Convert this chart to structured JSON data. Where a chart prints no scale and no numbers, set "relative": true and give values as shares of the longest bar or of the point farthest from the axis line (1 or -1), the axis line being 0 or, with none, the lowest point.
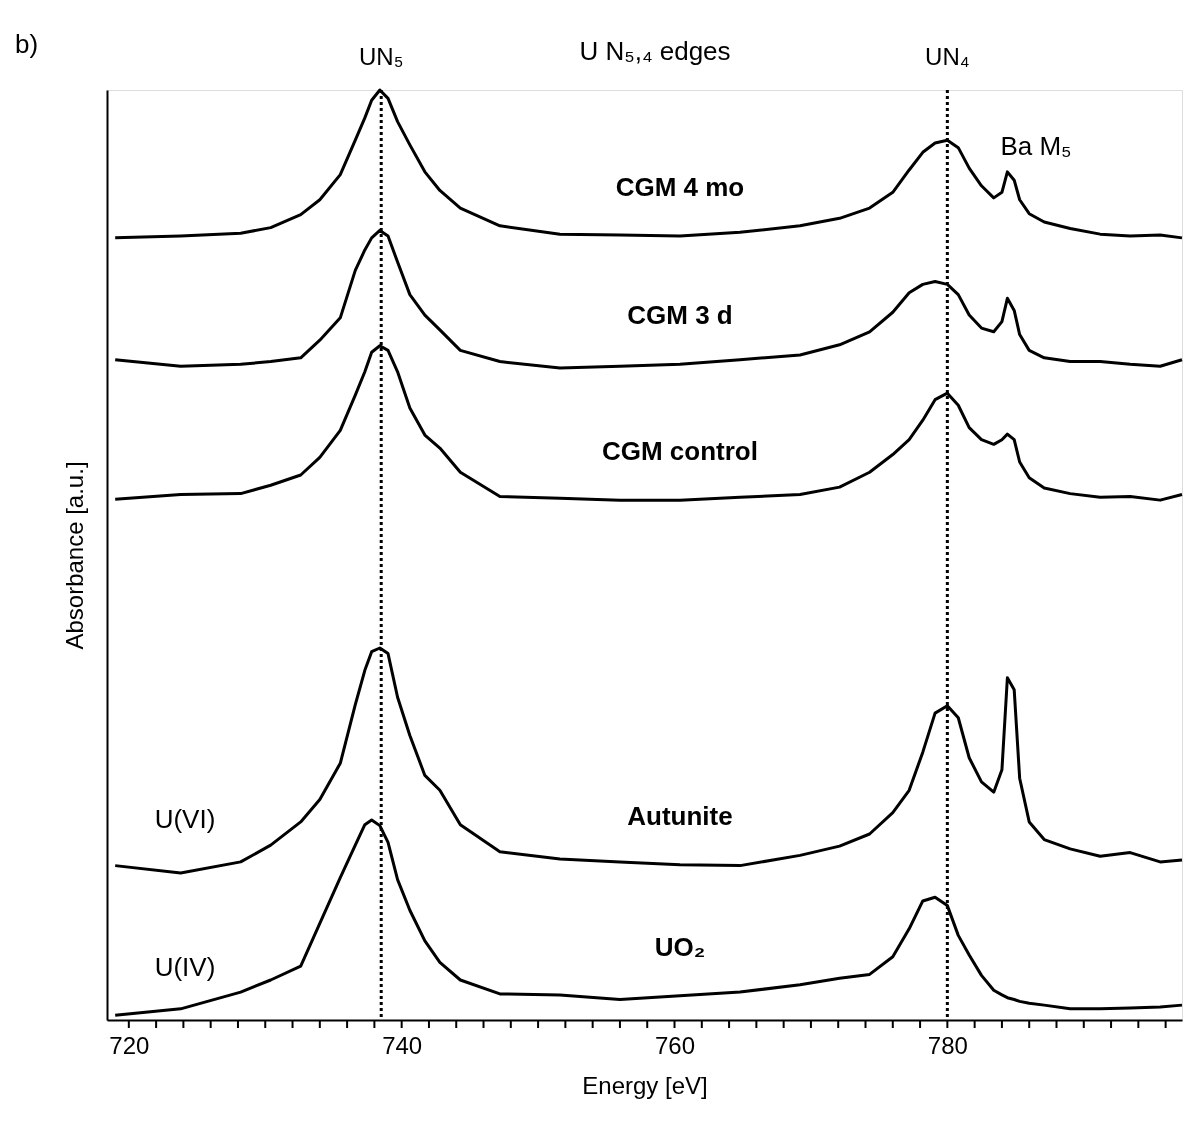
{
  "chart_data": {
    "type": "line",
    "relative": true,
    "xlabel": "Energy [eV]",
    "ylabel": "Absorbance [a.u.]",
    "x": [
      719.0,
      723.8,
      728.2,
      730.4,
      732.6,
      734.0,
      735.5,
      736.6,
      737.3,
      737.8,
      738.4,
      739.0,
      739.7,
      740.6,
      741.7,
      742.8,
      744.3,
      747.2,
      751.6,
      756.0,
      760.4,
      764.8,
      769.2,
      772.1,
      774.3,
      776.0,
      777.2,
      778.2,
      779.1,
      780.0,
      780.8,
      781.6,
      782.5,
      783.4,
      784.0,
      784.4,
      784.9,
      785.3,
      786.0,
      787.1,
      789.0,
      791.2,
      793.4,
      795.6,
      797.2
    ],
    "series": [
      {
        "name": "CGM 4 mo",
        "color": "#000000",
        "values": [
          0.841,
          0.843,
          0.846,
          0.852,
          0.866,
          0.882,
          0.909,
          0.946,
          0.97,
          0.989,
          1.0,
          0.991,
          0.966,
          0.941,
          0.912,
          0.892,
          0.873,
          0.854,
          0.845,
          0.844,
          0.843,
          0.847,
          0.854,
          0.862,
          0.873,
          0.89,
          0.914,
          0.933,
          0.943,
          0.946,
          0.938,
          0.916,
          0.897,
          0.884,
          0.89,
          0.912,
          0.903,
          0.882,
          0.867,
          0.858,
          0.851,
          0.845,
          0.843,
          0.844,
          0.841
        ]
      },
      {
        "name": "CGM 3 d",
        "color": "#000000",
        "values": [
          0.71,
          0.703,
          0.705,
          0.708,
          0.712,
          0.731,
          0.755,
          0.806,
          0.828,
          0.841,
          0.849,
          0.843,
          0.815,
          0.78,
          0.758,
          0.742,
          0.72,
          0.708,
          0.701,
          0.703,
          0.705,
          0.71,
          0.715,
          0.726,
          0.74,
          0.761,
          0.782,
          0.791,
          0.794,
          0.791,
          0.78,
          0.758,
          0.744,
          0.74,
          0.751,
          0.776,
          0.763,
          0.737,
          0.72,
          0.712,
          0.708,
          0.708,
          0.705,
          0.703,
          0.71
        ]
      },
      {
        "name": "CGM control",
        "color": "#000000",
        "values": [
          0.56,
          0.565,
          0.566,
          0.575,
          0.586,
          0.605,
          0.634,
          0.672,
          0.697,
          0.718,
          0.725,
          0.72,
          0.697,
          0.658,
          0.629,
          0.615,
          0.589,
          0.563,
          0.561,
          0.559,
          0.559,
          0.562,
          0.565,
          0.573,
          0.589,
          0.608,
          0.624,
          0.645,
          0.667,
          0.674,
          0.661,
          0.637,
          0.624,
          0.619,
          0.624,
          0.63,
          0.624,
          0.6,
          0.583,
          0.572,
          0.566,
          0.562,
          0.563,
          0.559,
          0.565
        ]
      },
      {
        "name": "Autunite",
        "color": "#000000",
        "values": [
          0.166,
          0.158,
          0.17,
          0.188,
          0.213,
          0.237,
          0.276,
          0.339,
          0.376,
          0.396,
          0.4,
          0.394,
          0.347,
          0.306,
          0.263,
          0.247,
          0.21,
          0.181,
          0.173,
          0.17,
          0.167,
          0.166,
          0.177,
          0.187,
          0.2,
          0.223,
          0.247,
          0.288,
          0.33,
          0.338,
          0.325,
          0.282,
          0.256,
          0.245,
          0.269,
          0.368,
          0.355,
          0.26,
          0.213,
          0.194,
          0.184,
          0.176,
          0.18,
          0.17,
          0.172
        ]
      },
      {
        "name": "UO₂",
        "color": "#000000",
        "values": [
          0.005,
          0.012,
          0.03,
          0.043,
          0.058,
          0.104,
          0.153,
          0.188,
          0.21,
          0.215,
          0.209,
          0.191,
          0.151,
          0.118,
          0.085,
          0.062,
          0.043,
          0.028,
          0.027,
          0.022,
          0.026,
          0.03,
          0.038,
          0.045,
          0.049,
          0.068,
          0.098,
          0.128,
          0.132,
          0.123,
          0.091,
          0.07,
          0.048,
          0.032,
          0.027,
          0.024,
          0.022,
          0.02,
          0.018,
          0.016,
          0.012,
          0.012,
          0.013,
          0.014,
          0.016
        ]
      }
    ],
    "xlim": [
      718.4,
      797.2
    ],
    "xticks": [
      720,
      {
        "value": 722,
        "label": null
      },
      {
        "value": 724,
        "label": null
      },
      {
        "value": 726,
        "label": null
      },
      {
        "value": 728,
        "label": null
      },
      {
        "value": 730,
        "label": null
      },
      {
        "value": 732,
        "label": null
      },
      {
        "value": 734,
        "label": null
      },
      {
        "value": 736,
        "label": null
      },
      {
        "value": 738,
        "label": null
      },
      740,
      {
        "value": 742,
        "label": null
      },
      {
        "value": 744,
        "label": null
      },
      {
        "value": 746,
        "label": null
      },
      {
        "value": 748,
        "label": null
      },
      {
        "value": 750,
        "label": null
      },
      {
        "value": 752,
        "label": null
      },
      {
        "value": 754,
        "label": null
      },
      {
        "value": 756,
        "label": null
      },
      {
        "value": 758,
        "label": null
      },
      760,
      {
        "value": 762,
        "label": null
      },
      {
        "value": 764,
        "label": null
      },
      {
        "value": 766,
        "label": null
      },
      {
        "value": 768,
        "label": null
      },
      {
        "value": 770,
        "label": null
      },
      {
        "value": 772,
        "label": null
      },
      {
        "value": 774,
        "label": null
      },
      {
        "value": 776,
        "label": null
      },
      {
        "value": 778,
        "label": null
      },
      780,
      {
        "value": 782,
        "label": null
      },
      {
        "value": 784,
        "label": null
      },
      {
        "value": 786,
        "label": null
      },
      {
        "value": 788,
        "label": null
      },
      {
        "value": 790,
        "label": null
      },
      {
        "value": 792,
        "label": null
      },
      {
        "value": 794,
        "label": null
      },
      {
        "value": 796,
        "label": null
      }
    ],
    "ref_lines": [
      {
        "axis": "x",
        "value": 738.5,
        "label": "UN₅",
        "line_style": "dotted",
        "color": "#000000"
      },
      {
        "axis": "x",
        "value": 780.0,
        "label": "UN₄",
        "line_style": "dotted",
        "color": "#000000"
      }
    ],
    "annotations": [
      "b)",
      "U N₅,₄ edges",
      "Ba M₅",
      "U(VI)",
      "U(IV)"
    ],
    "grid": false
  }
}
